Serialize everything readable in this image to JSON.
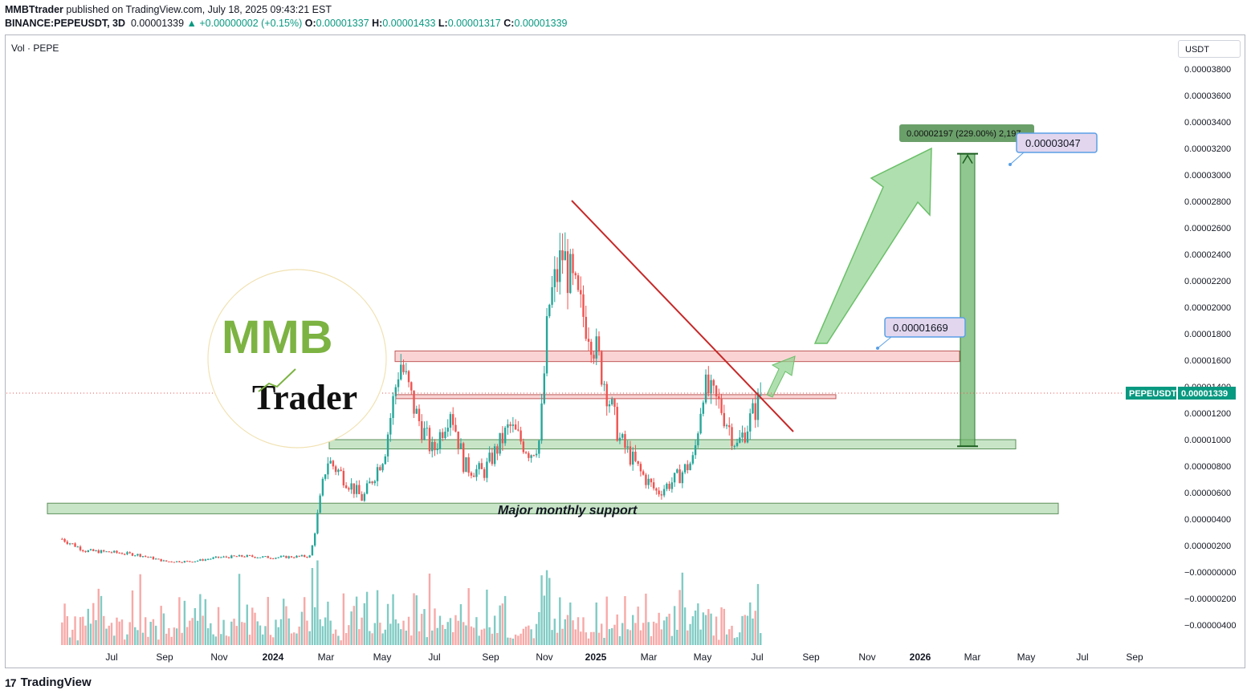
{
  "header": {
    "publisher": "MMBTtrader",
    "published_text": "published on TradingView.com, July 18, 2025 09:43:21 EST",
    "symbol": "BINANCE:PEPEUSDT, 3D",
    "last": "0.00001339",
    "change": "▲ +0.00000002 (+0.15%)",
    "o_label": "O:",
    "o_value": "0.00001337",
    "h_label": "H:",
    "h_value": "0.00001433",
    "l_label": "L:",
    "l_value": "0.00001317",
    "c_label": "C:",
    "c_value": "0.00001339"
  },
  "volume_label": "Vol · PEPE",
  "unit_label": "USDT",
  "footer": {
    "logo_mark": "17",
    "logo_text": "TradingView"
  },
  "watermark": {
    "top": "MMB",
    "bottom": "Trader"
  },
  "price_tag": {
    "symbol": "PEPEUSDT",
    "value": "0.00001339"
  },
  "annotations": {
    "measure": "0.00002197 (229.00%) 2,197",
    "target_label": "0.00003047",
    "resistance_label": "0.00001669",
    "support_text": "Major monthly support"
  },
  "colors": {
    "up": "#26a69a",
    "down": "#ef5350",
    "vol_up": "#80cbc4",
    "vol_down": "#f7a9a7",
    "support_zone": "#b7dcb5",
    "resistance_zone": "#f8c6c6",
    "trendline": "#c62828",
    "price_tag": "#089981",
    "label_bg": "#e1d6ee",
    "label_border": "#5a9fe6",
    "arrow": "#8fd18d"
  },
  "chart_data": {
    "type": "candlestick",
    "ylim": [
      -5e-06,
      3.85e-05
    ],
    "y_ticks": [
      "0.00003800",
      "0.00003600",
      "0.00003400",
      "0.00003200",
      "0.00003000",
      "0.00002800",
      "0.00002600",
      "0.00002400",
      "0.00002200",
      "0.00002000",
      "0.00001800",
      "0.00001600",
      "0.00001400",
      "0.00001200",
      "0.00001000",
      "0.00000800",
      "0.00000600",
      "0.00000400",
      "0.00000200",
      "−0.00000000",
      "−0.00000200",
      "−0.00000400"
    ],
    "x_ticks": [
      "Jul",
      "Sep",
      "Nov",
      "2024",
      "Mar",
      "May",
      "Jul",
      "Sep",
      "Nov",
      "2025",
      "Mar",
      "May",
      "Jul",
      "Sep",
      "Nov",
      "2026",
      "Mar",
      "May",
      "Jul",
      "Sep"
    ],
    "bold_x_ticks": [
      "2024",
      "2025",
      "2026"
    ],
    "series_close_path": [
      [
        "2023-05-05",
        2.5e-06
      ],
      [
        "2023-06-01",
        1.6e-06
      ],
      [
        "2023-07-01",
        1.5e-06
      ],
      [
        "2023-08-01",
        1.3e-06
      ],
      [
        "2023-09-01",
        8e-07
      ],
      [
        "2023-10-01",
        8e-07
      ],
      [
        "2023-11-01",
        1.1e-06
      ],
      [
        "2023-12-01",
        1.2e-06
      ],
      [
        "2024-01-01",
        1.1e-06
      ],
      [
        "2024-02-15",
        1.2e-06
      ],
      [
        "2024-03-05",
        8.5e-06
      ],
      [
        "2024-03-20",
        7.5e-06
      ],
      [
        "2024-04-15",
        5.5e-06
      ],
      [
        "2024-05-10",
        9e-06
      ],
      [
        "2024-05-28",
        1.6e-05
      ],
      [
        "2024-06-15",
        1.2e-05
      ],
      [
        "2024-07-05",
        9e-06
      ],
      [
        "2024-07-25",
        1.25e-05
      ],
      [
        "2024-08-10",
        8e-06
      ],
      [
        "2024-09-01",
        7.5e-06
      ],
      [
        "2024-10-01",
        1.1e-05
      ],
      [
        "2024-10-25",
        9e-06
      ],
      [
        "2024-11-05",
        1e-05
      ],
      [
        "2024-11-15",
        2e-05
      ],
      [
        "2024-12-01",
        2.4e-05
      ],
      [
        "2024-12-20",
        2e-05
      ],
      [
        "2025-01-01",
        1.85e-05
      ],
      [
        "2025-01-20",
        1.4e-05
      ],
      [
        "2025-02-05",
        1e-05
      ],
      [
        "2025-03-01",
        7.5e-06
      ],
      [
        "2025-03-20",
        6e-06
      ],
      [
        "2025-04-10",
        7e-06
      ],
      [
        "2025-05-01",
        8.5e-06
      ],
      [
        "2025-05-12",
        1.4e-05
      ],
      [
        "2025-06-01",
        1.25e-05
      ],
      [
        "2025-06-20",
        9.5e-06
      ],
      [
        "2025-07-05",
        1.15e-05
      ],
      [
        "2025-07-18",
        1.34e-05
      ]
    ],
    "zones": [
      {
        "name": "Major monthly support",
        "low": 4.4e-06,
        "high": 5.2e-06,
        "from": "2023-05-01",
        "to": "2026-08-20"
      },
      {
        "name": "support",
        "low": 9.3e-06,
        "high": 1e-05,
        "from": "2024-03-01",
        "to": "2026-03-25"
      },
      {
        "name": "mid",
        "low": 1.31e-05,
        "high": 1.34e-05,
        "from": "2024-05-20",
        "to": "2025-10-01"
      },
      {
        "name": "resistance",
        "low": 1.59e-05,
        "high": 1.67e-05,
        "from": "2024-05-20",
        "to": "2026-02-15"
      }
    ],
    "trendline": {
      "from": [
        "2024-12-10",
        2.74e-05
      ],
      "to": [
        "2025-08-05",
        1.1e-05
      ]
    },
    "measure": {
      "from": 9.5e-06,
      "to": 3.16e-05,
      "change": "0.00002197 (229.00%) 2,197"
    },
    "last_price": 1.339e-05
  }
}
